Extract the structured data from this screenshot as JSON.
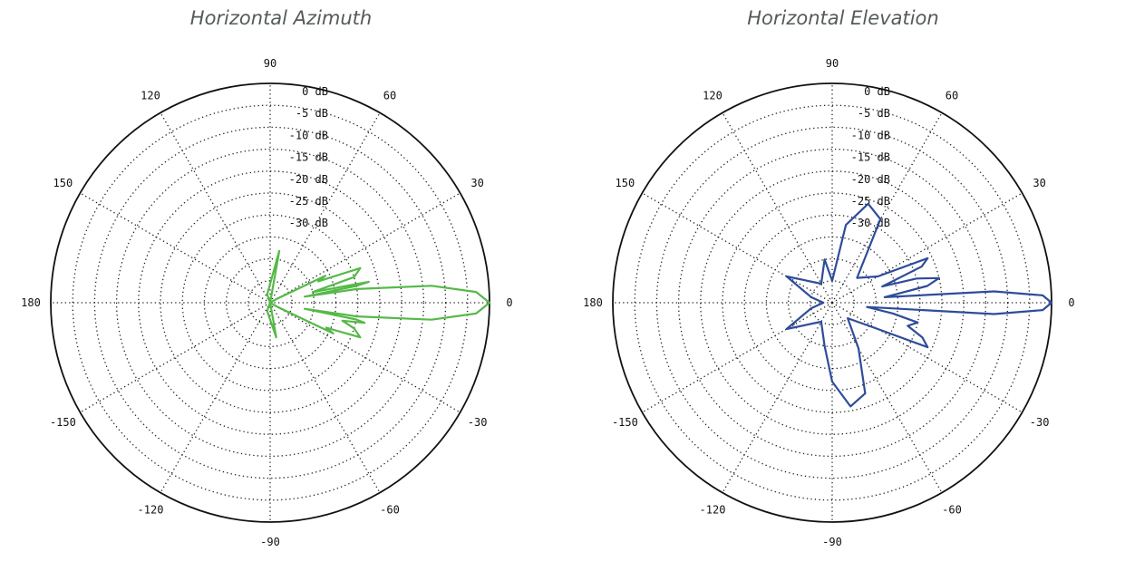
{
  "chart_data": [
    {
      "type": "polar",
      "title": "Horizontal Azimuth",
      "color": "#56b948",
      "angle_labels": [
        "0",
        "30",
        "60",
        "90",
        "120",
        "150",
        "180",
        "-150",
        "-120",
        "-90",
        "-60",
        "-30"
      ],
      "radial_labels": [
        "0 dB",
        "-5 dB",
        "-10 dB",
        "-15 dB",
        "-20 dB",
        "-25 dB",
        "-30 dB"
      ],
      "rlim": [
        -50,
        0
      ],
      "grid": true,
      "series": [
        {
          "theta": [
            -9,
            -6,
            -3,
            0,
            3,
            6,
            9,
            10,
            11,
            12,
            14,
            17,
            21,
            24,
            26,
            30,
            40,
            60,
            80,
            110,
            150,
            180,
            -150,
            -110,
            -80,
            -60,
            -40,
            -30,
            -26,
            -24,
            -21,
            -17,
            -14,
            -12,
            -11,
            -10,
            -9
          ],
          "r": [
            -30,
            -13,
            -3,
            0,
            -3,
            -13,
            -30,
            -42,
            -30,
            -27,
            -40,
            -30,
            -28,
            -38,
            -36,
            -48,
            -50,
            -50,
            -38,
            -48,
            -50,
            -50,
            -50,
            -48,
            -42,
            -50,
            -50,
            -48,
            -34,
            -36,
            -28,
            -30,
            -33,
            -28,
            -30,
            -42,
            -30
          ]
        }
      ]
    },
    {
      "type": "polar",
      "title": "Horizontal Elevation",
      "color": "#2e4c9a",
      "angle_labels": [
        "0",
        "30",
        "60",
        "90",
        "120",
        "150",
        "180",
        "-150",
        "-120",
        "-90",
        "-60",
        "-30"
      ],
      "radial_labels": [
        "0 dB",
        "-5 dB",
        "-10 dB",
        "-15 dB",
        "-20 dB",
        "-25 dB",
        "-30 dB"
      ],
      "rlim": [
        -50,
        0
      ],
      "grid": true,
      "series": [
        {
          "theta": [
            -4,
            -2,
            0,
            2,
            4,
            6,
            10,
            13,
            16,
            18,
            22,
            25,
            30,
            45,
            60,
            70,
            80,
            90,
            100,
            120,
            150,
            165,
            180,
            -165,
            -150,
            -120,
            -100,
            -90,
            -80,
            -70,
            -60,
            -45,
            -30,
            -25,
            -21,
            -17,
            -13,
            -10,
            -7,
            -4
          ],
          "r": [
            -13,
            -2,
            0,
            -2,
            -13,
            -38,
            -28,
            -25,
            -30,
            -38,
            -28,
            -26,
            -38,
            -42,
            -28,
            -26,
            -32,
            -45,
            -40,
            -45,
            -38,
            -45,
            -48,
            -45,
            -38,
            -45,
            -40,
            -32,
            -26,
            -28,
            -38,
            -45,
            -38,
            -26,
            -28,
            -32,
            -30,
            -36,
            -42,
            -13
          ]
        }
      ]
    }
  ]
}
